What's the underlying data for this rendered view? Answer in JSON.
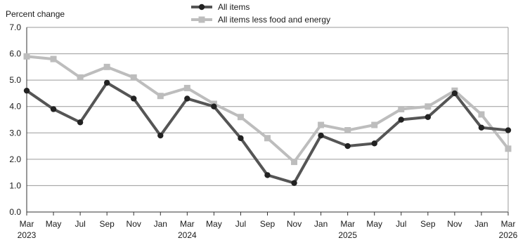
{
  "chart_data": {
    "type": "line",
    "ylabel": "Percent change",
    "ylim": [
      0,
      7
    ],
    "yticks": [
      "0.0",
      "1.0",
      "2.0",
      "3.0",
      "4.0",
      "5.0",
      "6.0",
      "7.0"
    ],
    "grid": true,
    "legend_position": "top-center",
    "categories": [
      "Mar 2023",
      "May 2023",
      "Jul 2023",
      "Sep 2023",
      "Nov 2023",
      "Jan 2024",
      "Mar 2024",
      "May 2024",
      "Jul 2024",
      "Sep 2024",
      "Nov 2024",
      "Jan 2025",
      "Mar 2025",
      "May 2025",
      "Jul 2025",
      "Sep 2025",
      "Nov 2025",
      "Jan 2026",
      "Mar 2026"
    ],
    "xtick_months": [
      "Mar",
      "May",
      "Jul",
      "Sep",
      "Nov",
      "Jan",
      "Mar",
      "May",
      "Jul",
      "Sep",
      "Nov",
      "Jan",
      "Mar",
      "May",
      "Jul",
      "Sep",
      "Nov",
      "Jan",
      "Mar"
    ],
    "xtick_years": [
      {
        "index": 0,
        "label": "2023"
      },
      {
        "index": 6,
        "label": "2024"
      },
      {
        "index": 12,
        "label": "2025"
      },
      {
        "index": 18,
        "label": "2026"
      }
    ],
    "series": [
      {
        "name": "All items",
        "color": "#555555",
        "marker": "circle",
        "values": [
          4.6,
          3.9,
          3.4,
          4.9,
          4.3,
          2.9,
          4.3,
          4.0,
          2.8,
          1.4,
          1.1,
          2.9,
          2.5,
          2.6,
          3.5,
          3.6,
          4.5,
          3.2,
          3.1
        ]
      },
      {
        "name": "All items less food and energy",
        "color": "#bdbdbd",
        "marker": "square",
        "values": [
          5.9,
          5.8,
          5.1,
          5.5,
          5.1,
          4.4,
          4.7,
          4.1,
          3.6,
          2.8,
          1.9,
          3.3,
          3.1,
          3.3,
          3.9,
          4.0,
          4.6,
          3.7,
          2.4
        ]
      }
    ]
  }
}
